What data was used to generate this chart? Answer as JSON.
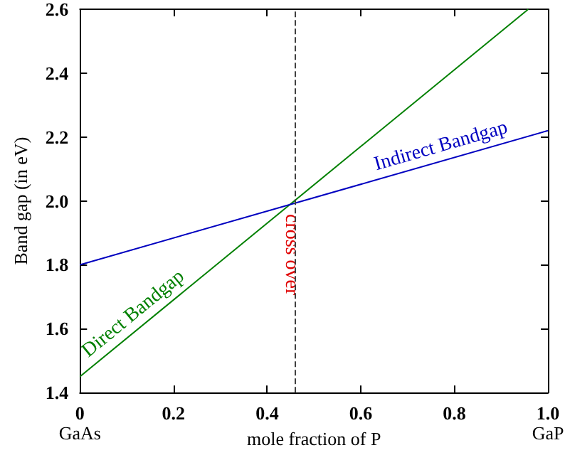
{
  "chart_data": {
    "type": "line",
    "xlabel": "mole fraction of P",
    "ylabel": "Band gap (in eV)",
    "xlim": [
      0,
      1
    ],
    "ylim": [
      1.4,
      2.6
    ],
    "xticks": [
      0,
      0.2,
      0.4,
      0.6,
      0.8,
      {
        "value": 1,
        "label": "1.0"
      }
    ],
    "yticks": [
      1.4,
      1.6,
      1.8,
      {
        "value": 2,
        "label": "2.0"
      },
      2.2,
      2.4,
      2.6
    ],
    "series": [
      {
        "name": "Direct Bandgap",
        "color": "#008000",
        "x": [
          0,
          0.958
        ],
        "values": [
          1.45,
          2.6
        ]
      },
      {
        "name": "Indirect Bandgap",
        "color": "#0000c0",
        "x": [
          0,
          1
        ],
        "values": [
          1.8,
          2.22
        ]
      }
    ],
    "ref_lines": [
      {
        "axis": "x",
        "value": 0.46,
        "label": "cross over",
        "color": "#404040",
        "line_style": "dashed"
      }
    ],
    "annotations": [
      "GaAs",
      "GaP"
    ],
    "grid": false,
    "legend": false,
    "marker": "none",
    "line_style": "solid"
  }
}
